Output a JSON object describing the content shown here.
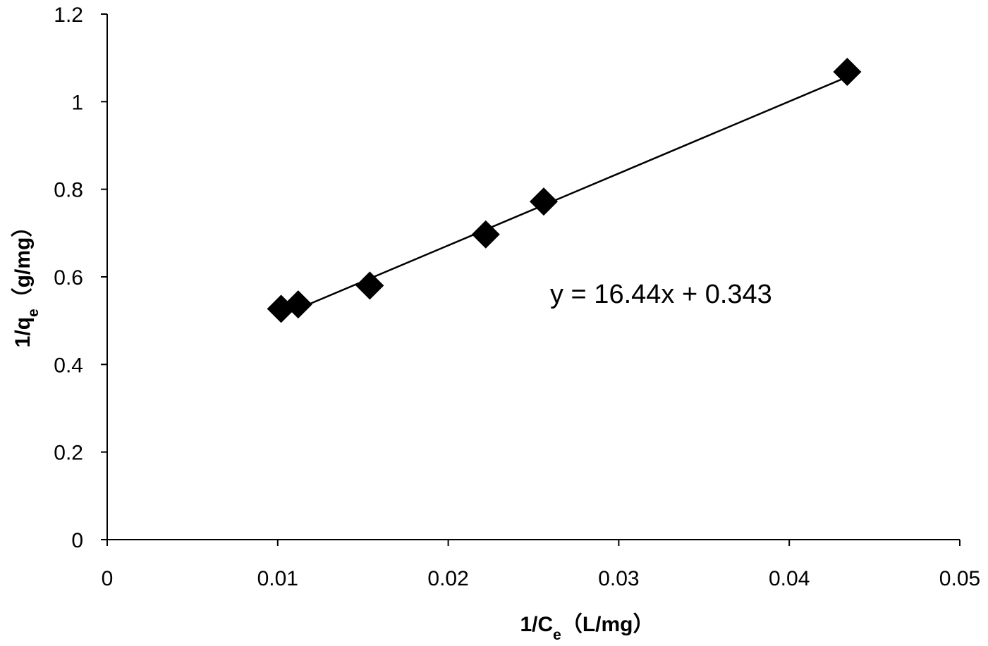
{
  "chart_data": {
    "type": "scatter",
    "title": "",
    "xlabel": {
      "main": "1/C",
      "sub": "e",
      "unit": "（L/mg）"
    },
    "ylabel": {
      "main": "1/q",
      "sub": "e",
      "unit": "（g/mg）"
    },
    "xlim": [
      0,
      0.05
    ],
    "ylim": [
      0,
      1.2
    ],
    "x_ticks": [
      "0",
      "0.01",
      "0.02",
      "0.03",
      "0.04",
      "0.05"
    ],
    "y_ticks": [
      "0",
      "0.2",
      "0.4",
      "0.6",
      "0.8",
      "1",
      "1.2"
    ],
    "grid": false,
    "legend": "none",
    "marker": "diamond",
    "colors": {
      "marker": "#000000",
      "trendline": "#000000",
      "axis": "#000000"
    },
    "series": [
      {
        "points": [
          {
            "x": 0.0102,
            "y": 0.527
          },
          {
            "x": 0.0112,
            "y": 0.537
          },
          {
            "x": 0.0154,
            "y": 0.58
          },
          {
            "x": 0.0222,
            "y": 0.697
          },
          {
            "x": 0.0256,
            "y": 0.772
          },
          {
            "x": 0.0434,
            "y": 1.068
          }
        ]
      }
    ],
    "trendline": {
      "equation": "y = 16.44x + 0.343",
      "slope": 16.44,
      "intercept": 0.343
    }
  }
}
